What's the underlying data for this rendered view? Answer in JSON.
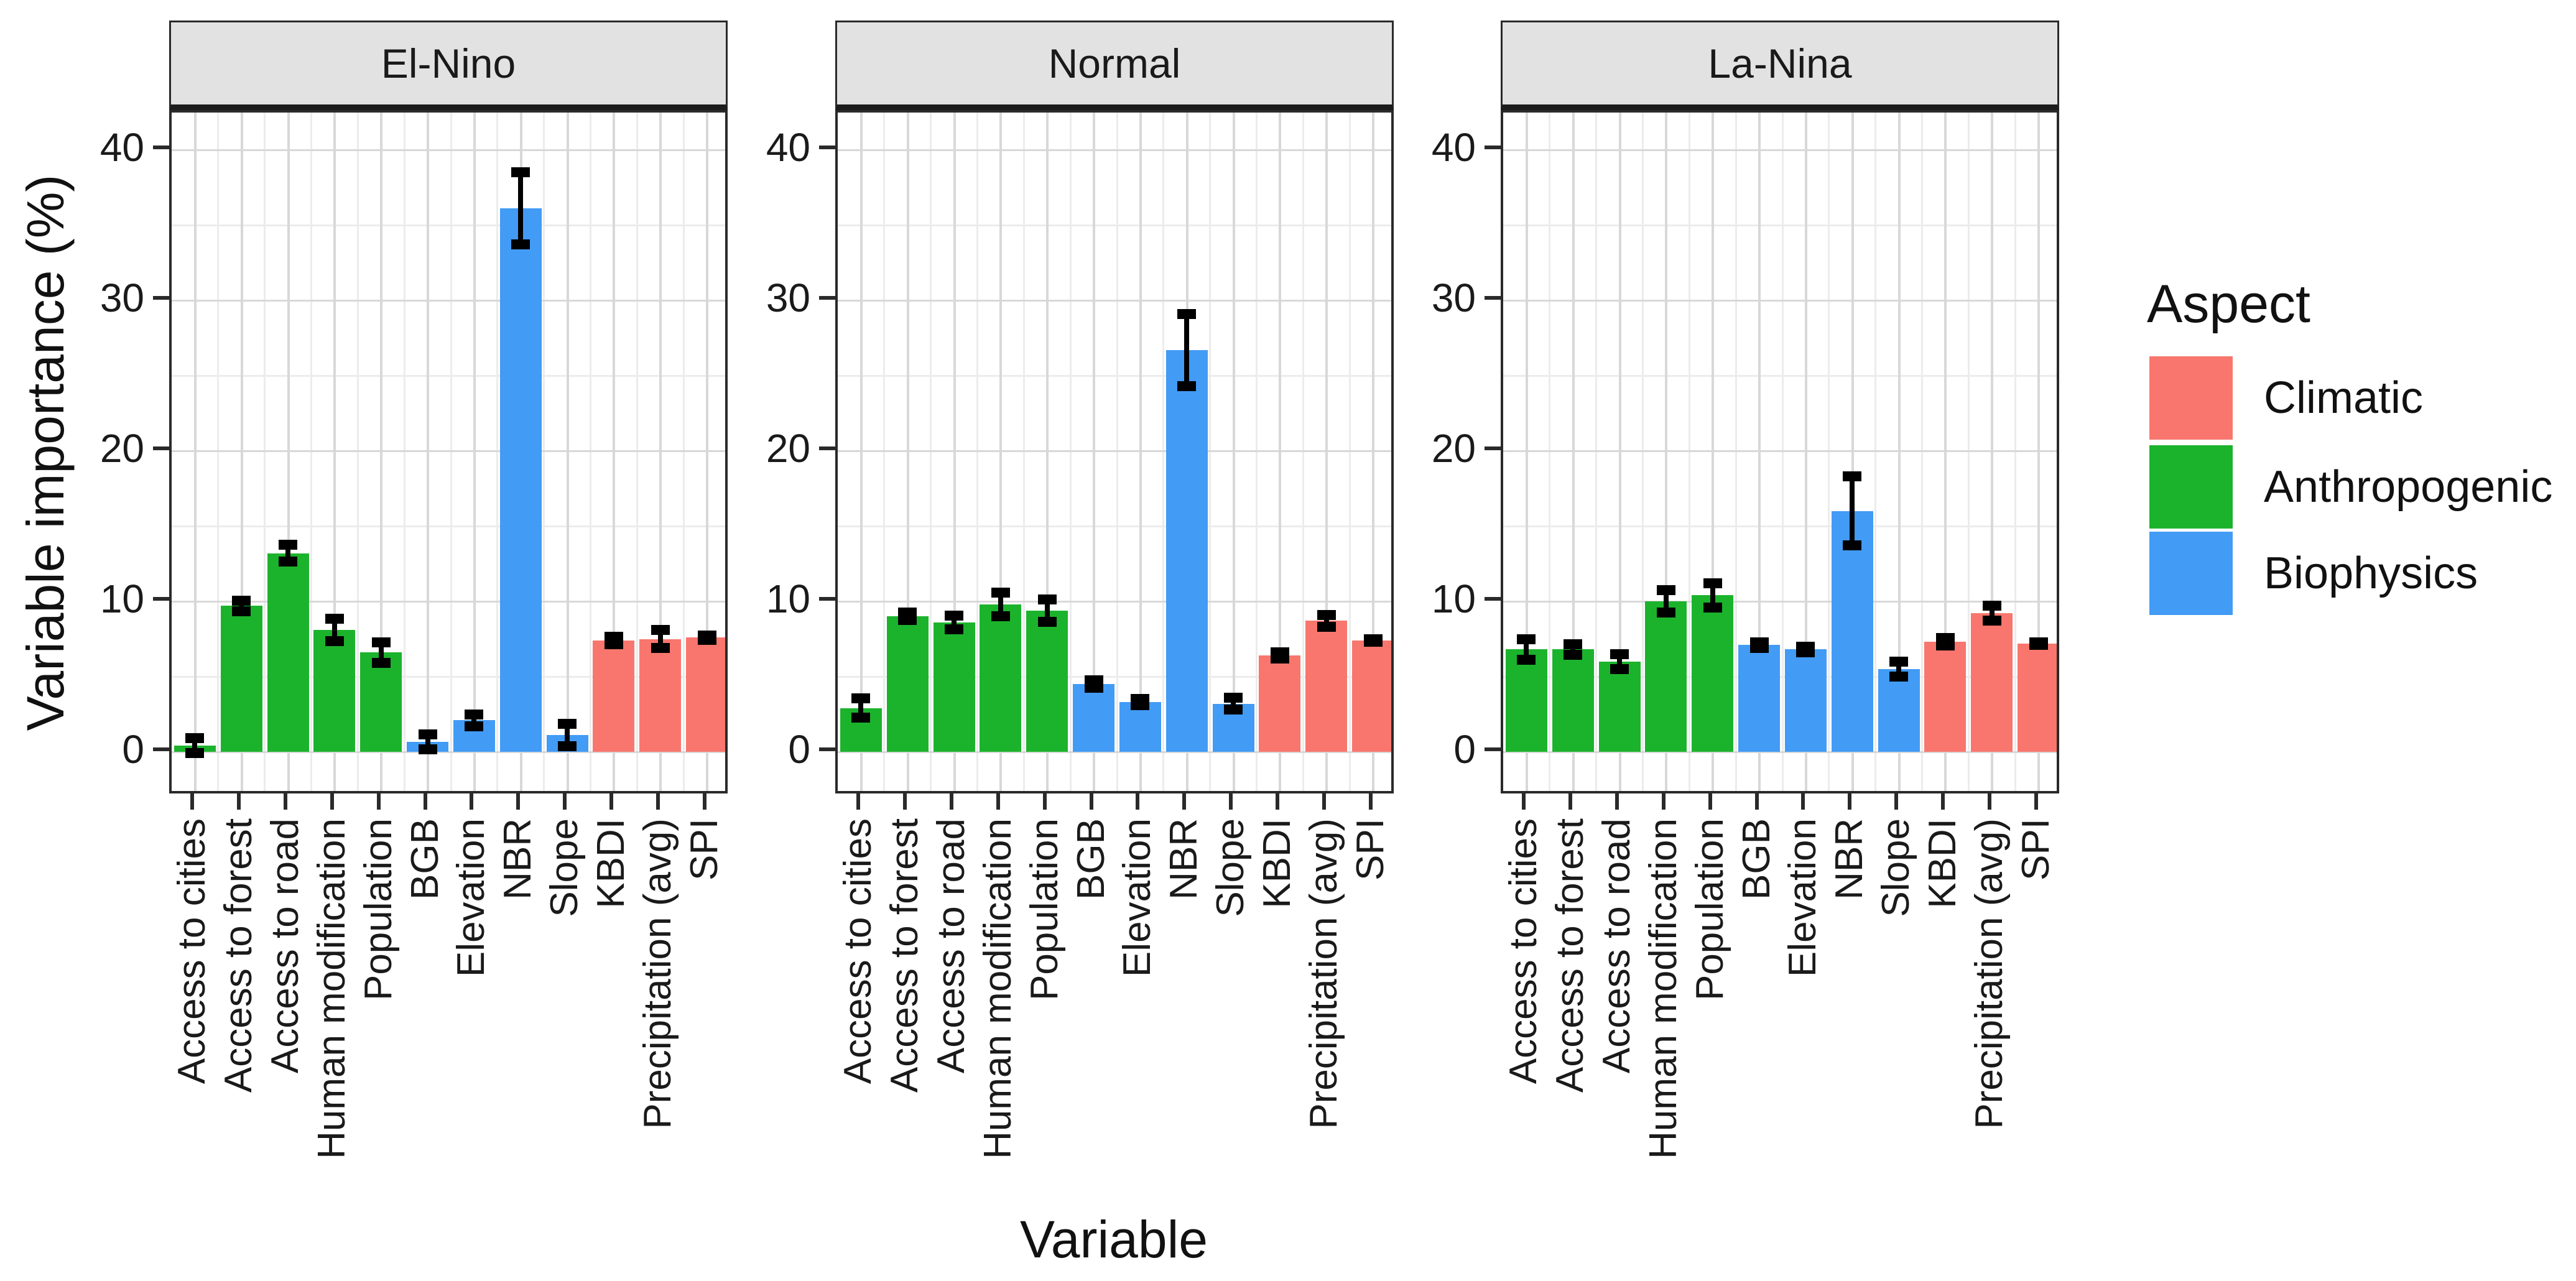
{
  "chart_data": {
    "type": "bar",
    "faceted": true,
    "facet_titles": [
      "El-Nino",
      "Normal",
      "La-Nina"
    ],
    "categories": [
      "Access to cities",
      "Access to forest",
      "Access to road",
      "Human modification",
      "Population",
      "BGB",
      "Elevation",
      "NBR",
      "Slope",
      "KBDI",
      "Precipitation (avg)",
      "SPI"
    ],
    "category_aspect": [
      "Anthropogenic",
      "Anthropogenic",
      "Anthropogenic",
      "Anthropogenic",
      "Anthropogenic",
      "Biophysics",
      "Biophysics",
      "Biophysics",
      "Biophysics",
      "Climatic",
      "Climatic",
      "Climatic"
    ],
    "series": [
      {
        "facet": "El-Nino",
        "values": [
          0.4,
          9.7,
          13.2,
          8.1,
          6.6,
          0.65,
          2.1,
          36.1,
          1.1,
          7.4,
          7.5,
          7.6
        ],
        "errors": [
          0.7,
          0.55,
          0.75,
          0.95,
          0.9,
          0.7,
          0.6,
          2.6,
          0.95,
          0.45,
          0.8,
          0.35
        ]
      },
      {
        "facet": "Normal",
        "values": [
          2.9,
          9.0,
          8.6,
          9.8,
          9.4,
          4.5,
          3.3,
          26.7,
          3.2,
          6.4,
          8.7,
          7.4
        ],
        "errors": [
          0.85,
          0.45,
          0.65,
          1.0,
          0.95,
          0.45,
          0.4,
          2.6,
          0.6,
          0.4,
          0.6,
          0.3
        ]
      },
      {
        "facet": "La-Nina",
        "values": [
          6.8,
          6.8,
          6.0,
          10.0,
          10.4,
          7.1,
          6.8,
          16.0,
          5.5,
          7.3,
          9.2,
          7.2
        ],
        "errors": [
          0.9,
          0.55,
          0.7,
          0.95,
          1.0,
          0.4,
          0.4,
          2.5,
          0.7,
          0.45,
          0.7,
          0.3
        ]
      }
    ],
    "xlabel": "Variable",
    "ylabel": "Variable importance (%)",
    "yticks": [
      0,
      10,
      20,
      30,
      40
    ],
    "yminor": [
      5,
      15,
      25,
      35
    ],
    "ylim": [
      0,
      42.3
    ],
    "grid": "major and minor, light gray on white, black panel border",
    "error_bars": true,
    "legend": {
      "title": "Aspect",
      "position": "right",
      "entries": [
        {
          "label": "Climatic",
          "color": "#F8766D"
        },
        {
          "label": "Anthropogenic",
          "color": "#1CB32C"
        },
        {
          "label": "Biophysics",
          "color": "#429BF5"
        }
      ]
    },
    "colors": {
      "Climatic": "#F8766D",
      "Anthropogenic": "#1CB32C",
      "Biophysics": "#429BF5",
      "strip_background": "#e2e2e2",
      "panel_border": "#2a2a2a",
      "grid_major": "#d8d8d8",
      "grid_minor": "#ececec"
    }
  }
}
